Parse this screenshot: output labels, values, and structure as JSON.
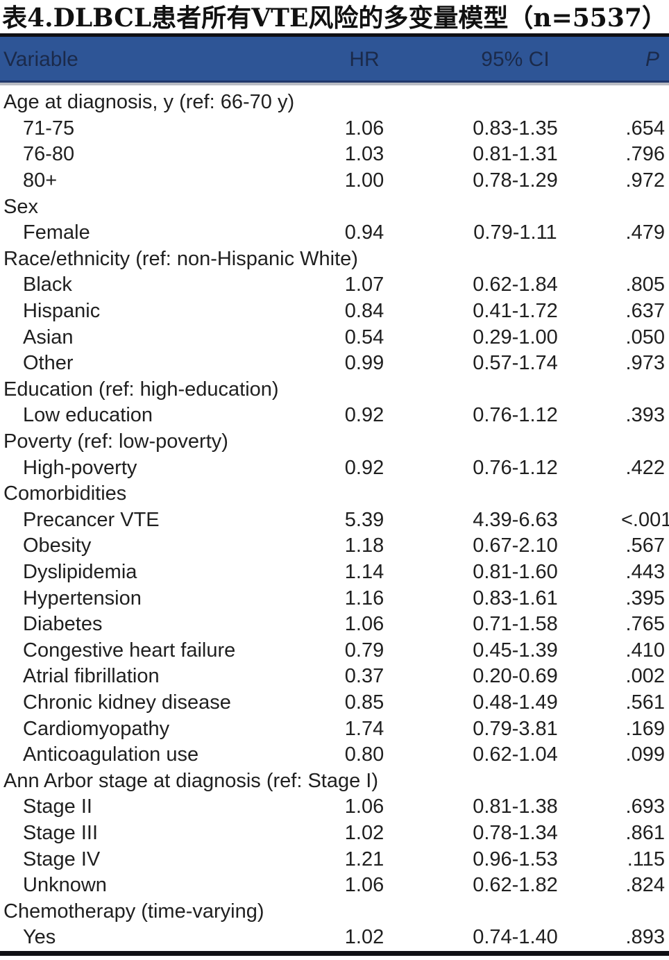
{
  "title": "表4.DLBCL患者所有VTE风险的多变量模型（n=5537）",
  "colors": {
    "header_bg": "#2e5596",
    "header_text": "#1b2a4a",
    "body_text": "#1f1f1f",
    "rule_black": "#101014",
    "rule_gray": "#b9bcc4"
  },
  "table": {
    "columns": [
      "Variable",
      "HR",
      "95% CI",
      "P"
    ],
    "rows": [
      {
        "type": "group",
        "label": "Age at diagnosis, y (ref: 66-70 y)",
        "hr": "",
        "ci": "",
        "p": ""
      },
      {
        "type": "sub",
        "label": "71-75",
        "hr": "1.06",
        "ci": "0.83-1.35",
        "p": ".654"
      },
      {
        "type": "sub",
        "label": "76-80",
        "hr": "1.03",
        "ci": "0.81-1.31",
        "p": ".796"
      },
      {
        "type": "sub",
        "label": "80+",
        "hr": "1.00",
        "ci": "0.78-1.29",
        "p": ".972"
      },
      {
        "type": "group",
        "label": "Sex",
        "hr": "",
        "ci": "",
        "p": ""
      },
      {
        "type": "sub",
        "label": "Female",
        "hr": "0.94",
        "ci": "0.79-1.11",
        "p": ".479"
      },
      {
        "type": "group",
        "label": "Race/ethnicity (ref: non-Hispanic White)",
        "hr": "",
        "ci": "",
        "p": ""
      },
      {
        "type": "sub",
        "label": "Black",
        "hr": "1.07",
        "ci": "0.62-1.84",
        "p": ".805"
      },
      {
        "type": "sub",
        "label": "Hispanic",
        "hr": "0.84",
        "ci": "0.41-1.72",
        "p": ".637"
      },
      {
        "type": "sub",
        "label": "Asian",
        "hr": "0.54",
        "ci": "0.29-1.00",
        "p": ".050"
      },
      {
        "type": "sub",
        "label": "Other",
        "hr": "0.99",
        "ci": "0.57-1.74",
        "p": ".973"
      },
      {
        "type": "group",
        "label": "Education (ref: high-education)",
        "hr": "",
        "ci": "",
        "p": ""
      },
      {
        "type": "sub",
        "label": "Low education",
        "hr": "0.92",
        "ci": "0.76-1.12",
        "p": ".393"
      },
      {
        "type": "group",
        "label": "Poverty (ref: low-poverty)",
        "hr": "",
        "ci": "",
        "p": ""
      },
      {
        "type": "sub",
        "label": "High-poverty",
        "hr": "0.92",
        "ci": "0.76-1.12",
        "p": ".422"
      },
      {
        "type": "group",
        "label": "Comorbidities",
        "hr": "",
        "ci": "",
        "p": ""
      },
      {
        "type": "sub",
        "label": "Precancer VTE",
        "hr": "5.39",
        "ci": "4.39-6.63",
        "p": "<.001"
      },
      {
        "type": "sub",
        "label": "Obesity",
        "hr": "1.18",
        "ci": "0.67-2.10",
        "p": ".567"
      },
      {
        "type": "sub",
        "label": "Dyslipidemia",
        "hr": "1.14",
        "ci": "0.81-1.60",
        "p": ".443"
      },
      {
        "type": "sub",
        "label": "Hypertension",
        "hr": "1.16",
        "ci": "0.83-1.61",
        "p": ".395"
      },
      {
        "type": "sub",
        "label": "Diabetes",
        "hr": "1.06",
        "ci": "0.71-1.58",
        "p": ".765"
      },
      {
        "type": "sub",
        "label": "Congestive heart failure",
        "hr": "0.79",
        "ci": "0.45-1.39",
        "p": ".410"
      },
      {
        "type": "sub",
        "label": "Atrial fibrillation",
        "hr": "0.37",
        "ci": "0.20-0.69",
        "p": ".002"
      },
      {
        "type": "sub",
        "label": "Chronic kidney disease",
        "hr": "0.85",
        "ci": "0.48-1.49",
        "p": ".561"
      },
      {
        "type": "sub",
        "label": "Cardiomyopathy",
        "hr": "1.74",
        "ci": "0.79-3.81",
        "p": ".169"
      },
      {
        "type": "sub",
        "label": "Anticoagulation use",
        "hr": "0.80",
        "ci": "0.62-1.04",
        "p": ".099"
      },
      {
        "type": "group",
        "label": "Ann Arbor stage at diagnosis (ref: Stage I)",
        "hr": "",
        "ci": "",
        "p": ""
      },
      {
        "type": "sub",
        "label": "Stage II",
        "hr": "1.06",
        "ci": "0.81-1.38",
        "p": ".693"
      },
      {
        "type": "sub",
        "label": "Stage III",
        "hr": "1.02",
        "ci": "0.78-1.34",
        "p": ".861"
      },
      {
        "type": "sub",
        "label": "Stage IV",
        "hr": "1.21",
        "ci": "0.96-1.53",
        "p": ".115"
      },
      {
        "type": "sub",
        "label": "Unknown",
        "hr": "1.06",
        "ci": "0.62-1.82",
        "p": ".824"
      },
      {
        "type": "group",
        "label": "Chemotherapy (time-varying)",
        "hr": "",
        "ci": "",
        "p": ""
      },
      {
        "type": "sub",
        "label": "Yes",
        "hr": "1.02",
        "ci": "0.74-1.40",
        "p": ".893"
      }
    ]
  }
}
